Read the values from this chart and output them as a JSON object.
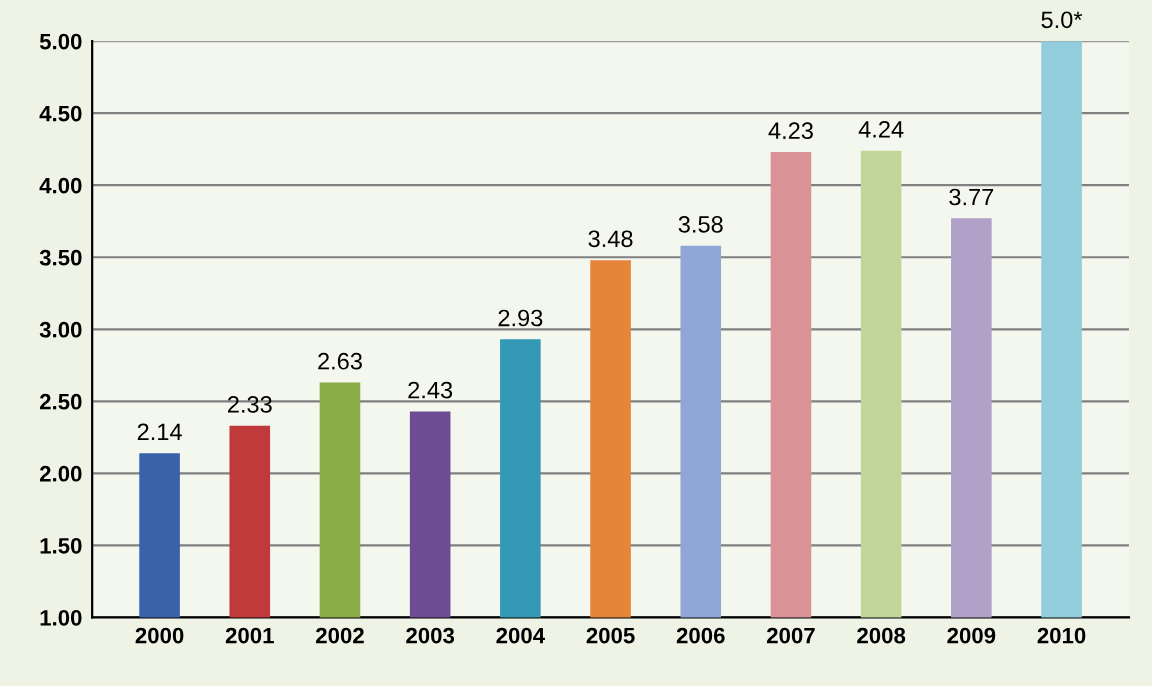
{
  "chart_data": {
    "type": "bar",
    "categories": [
      "2000",
      "2001",
      "2002",
      "2003",
      "2004",
      "2005",
      "2006",
      "2007",
      "2008",
      "2009",
      "2010"
    ],
    "values": [
      2.14,
      2.33,
      2.63,
      2.43,
      2.93,
      3.48,
      3.58,
      4.23,
      4.24,
      3.77,
      5.0
    ],
    "colors": [
      "#3a62a8",
      "#c0393b",
      "#8aab46",
      "#6e4c94",
      "#3399b5",
      "#e6843a",
      "#8fa6d6",
      "#d99396",
      "#c2d69b",
      "#b1a0c7",
      "#92cddc"
    ],
    "value_labels": [
      "2.14",
      "2.33",
      "2.63",
      "2.43",
      "2.93",
      "3.48",
      "3.58",
      "4.23",
      "4.24",
      "3.77",
      "5.0*"
    ],
    "ylim": [
      1,
      5
    ],
    "yticks": [
      {
        "value": 1,
        "label": "1.00"
      },
      {
        "value": 1.5,
        "label": "1.50"
      },
      {
        "value": 2,
        "label": "2.00"
      },
      {
        "value": 2.5,
        "label": "2.50"
      },
      {
        "value": 3,
        "label": "3.00"
      },
      {
        "value": 3.5,
        "label": "3.50"
      },
      {
        "value": 4,
        "label": "4.00"
      },
      {
        "value": 4.5,
        "label": "4.50"
      },
      {
        "value": 5,
        "label": "5.00"
      }
    ],
    "grid": "y"
  }
}
